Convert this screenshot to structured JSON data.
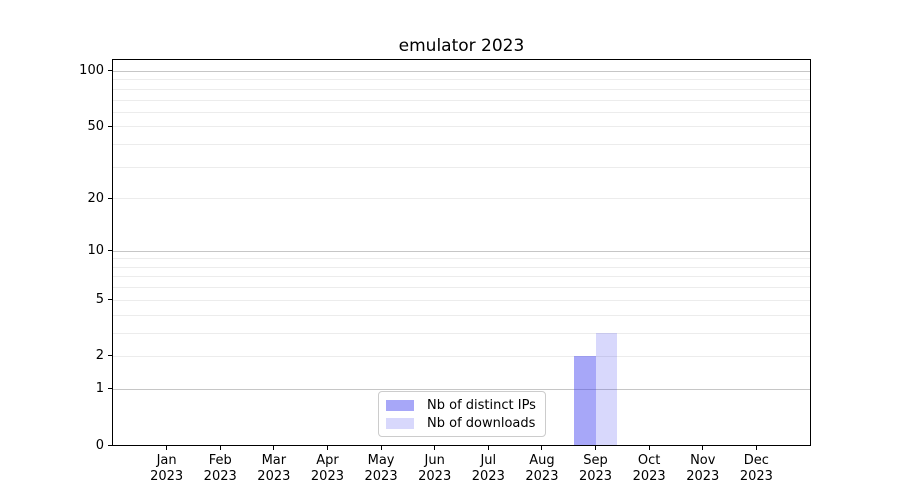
{
  "chart_data": {
    "type": "bar",
    "title": "emulator 2023",
    "categories": [
      "Jan",
      "Feb",
      "Mar",
      "Apr",
      "May",
      "Jun",
      "Jul",
      "Aug",
      "Sep",
      "Oct",
      "Nov",
      "Dec"
    ],
    "category_year": "2023",
    "series": [
      {
        "name": "Nb of distinct IPs",
        "color": "rgba(60,60,240,0.45)",
        "values": [
          0,
          0,
          0,
          0,
          0,
          0,
          0,
          0,
          2,
          0,
          0,
          0
        ]
      },
      {
        "name": "Nb of downloads",
        "color": "rgba(60,60,240,0.20)",
        "values": [
          0,
          0,
          0,
          0,
          0,
          0,
          0,
          0,
          3,
          0,
          0,
          0
        ]
      }
    ],
    "y_axis": {
      "scale": "log10(1+value)",
      "tick_values": [
        0,
        1,
        2,
        5,
        10,
        20,
        50,
        100
      ],
      "major_grid_values": [
        1,
        10,
        100
      ],
      "minor_grid_values": [
        2,
        3,
        4,
        5,
        6,
        7,
        8,
        9,
        20,
        30,
        40,
        50,
        60,
        70,
        80,
        90
      ],
      "ylim": [
        0,
        115
      ]
    },
    "legend": {
      "position": "lower-center-inside",
      "entries": [
        "Nb of distinct IPs",
        "Nb of downloads"
      ]
    },
    "colors": {
      "major_grid": "#c6c6c6",
      "minor_grid": "#ececec",
      "spine": "#000000",
      "background": "#ffffff"
    }
  }
}
